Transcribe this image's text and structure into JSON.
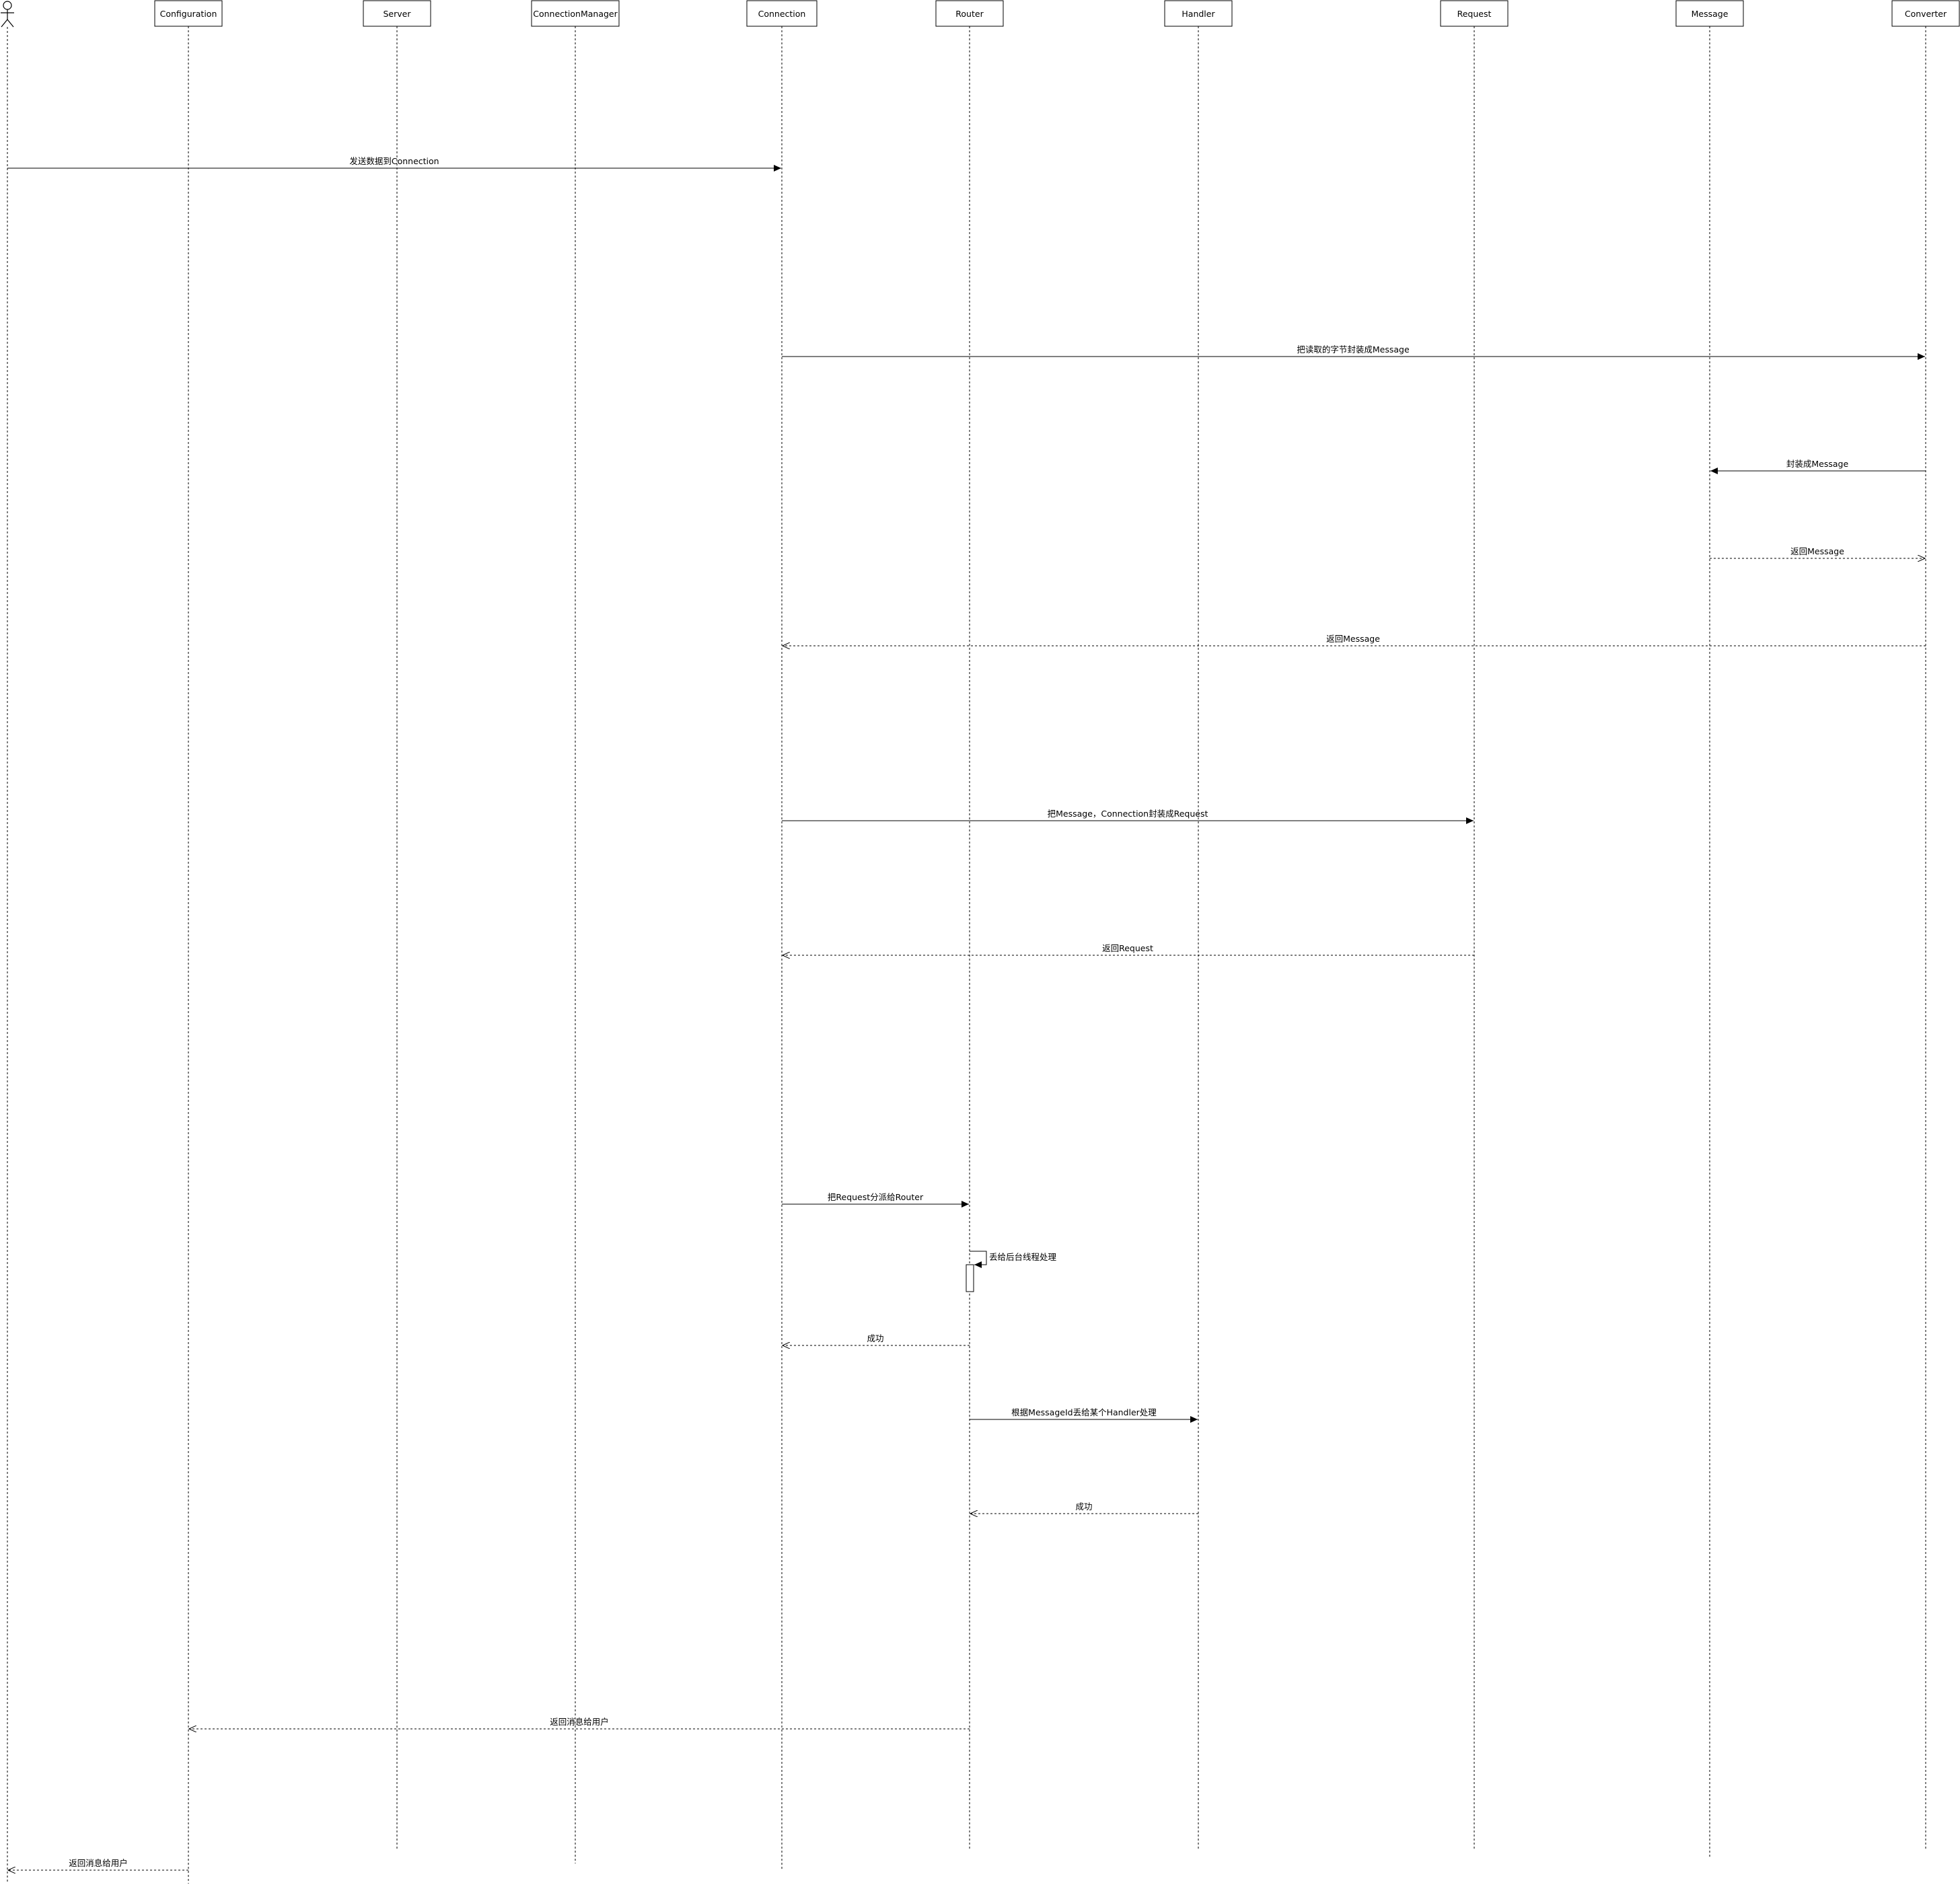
{
  "participants": [
    {
      "id": "actor",
      "label": ""
    },
    {
      "id": "configuration",
      "label": "Configuration"
    },
    {
      "id": "server",
      "label": "Server"
    },
    {
      "id": "connectionmanager",
      "label": "ConnectionManager"
    },
    {
      "id": "connection",
      "label": "Connection"
    },
    {
      "id": "router",
      "label": "Router"
    },
    {
      "id": "handler",
      "label": "Handler"
    },
    {
      "id": "request",
      "label": "Request"
    },
    {
      "id": "message",
      "label": "Message"
    },
    {
      "id": "converter",
      "label": "Converter"
    }
  ],
  "messages": [
    {
      "from": "actor",
      "to": "connection",
      "label": "发送数据到Connection",
      "kind": "sync"
    },
    {
      "from": "connection",
      "to": "converter",
      "label": "把读取的字节封装成Message",
      "kind": "sync"
    },
    {
      "from": "converter",
      "to": "message",
      "label": "封装成Message",
      "kind": "sync"
    },
    {
      "from": "message",
      "to": "converter",
      "label": "返回Message",
      "kind": "return"
    },
    {
      "from": "converter",
      "to": "connection",
      "label": "返回Message",
      "kind": "return"
    },
    {
      "from": "connection",
      "to": "request",
      "label": "把Message，Connection封装成Request",
      "kind": "sync"
    },
    {
      "from": "request",
      "to": "connection",
      "label": "返回Request",
      "kind": "return"
    },
    {
      "from": "connection",
      "to": "router",
      "label": "把Request分派给Router",
      "kind": "sync"
    },
    {
      "from": "router",
      "to": "router",
      "label": "丢给后台线程处理",
      "kind": "self"
    },
    {
      "from": "router",
      "to": "connection",
      "label": "成功",
      "kind": "return"
    },
    {
      "from": "router",
      "to": "handler",
      "label": "根据MessageId丢给某个Handler处理",
      "kind": "sync"
    },
    {
      "from": "handler",
      "to": "router",
      "label": "成功",
      "kind": "return"
    },
    {
      "from": "router",
      "to": "configuration",
      "label": "返回消息给用户",
      "kind": "return"
    },
    {
      "from": "configuration",
      "to": "actor",
      "label": "返回消息给用户",
      "kind": "return"
    }
  ]
}
